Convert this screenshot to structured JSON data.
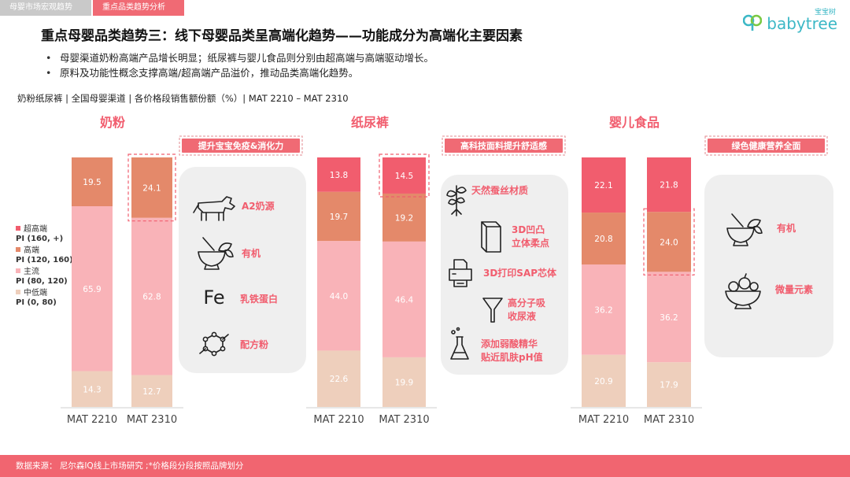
{
  "tabs": [
    "母婴市场宏观趋势",
    "重点品类趋势分析"
  ],
  "logo": {
    "cn": "宝宝树",
    "en": "babytree"
  },
  "title": "重点母婴品类趋势三：线下母婴品类呈高端化趋势——功能成分为高端化主要因素",
  "bullets": [
    "母婴渠道奶粉高端产品增长明显；纸尿裤与婴儿食品则分别由超高端与高端驱动增长。",
    "原料及功能性概念支撑高端/超高端产品溢价，推动品类高端化趋势。"
  ],
  "subtitle": "奶粉纸尿裤 | 全国母婴渠道 | 各价格段销售额份额（%）| MAT 2210 – MAT 2310",
  "legend": [
    {
      "name": "超高端",
      "pi": "PI (160, +)",
      "color": "#f15d6e"
    },
    {
      "name": "高端",
      "pi": "PI (120, 160)",
      "color": "#e4896a"
    },
    {
      "name": "主流",
      "pi": "PI (80, 120)",
      "color": "#f9b3b8"
    },
    {
      "name": "中低端",
      "pi": "PI (0, 80)",
      "color": "#eecfbc"
    }
  ],
  "colors": {
    "accent": "#f06a74",
    "super": "#f15d6e",
    "high": "#e4896a",
    "main": "#f9b3b8",
    "low": "#eecfbc",
    "text_on_bar": "#ffffff"
  },
  "chart_data": [
    {
      "type": "bar",
      "stacked": true,
      "title": "奶粉",
      "categories": [
        "MAT 2210",
        "MAT 2310"
      ],
      "series": [
        {
          "name": "中低端",
          "values": [
            14.3,
            12.7
          ]
        },
        {
          "name": "主流",
          "values": [
            65.9,
            62.8
          ]
        },
        {
          "name": "高端",
          "values": [
            19.5,
            24.1
          ]
        }
      ],
      "highlight": {
        "series": "高端",
        "category": "MAT 2310"
      },
      "tag": "提升宝宝免疫&消化力",
      "features": [
        {
          "icon": "cow-icon",
          "label": "A2奶源"
        },
        {
          "icon": "mortar-icon",
          "label": "有机"
        },
        {
          "icon": "fe-icon",
          "label": "乳铁蛋白",
          "symbol": "Fe"
        },
        {
          "icon": "molecule-icon",
          "label": "配方粉"
        }
      ]
    },
    {
      "type": "bar",
      "stacked": true,
      "title": "纸尿裤",
      "categories": [
        "MAT 2210",
        "MAT 2310"
      ],
      "series": [
        {
          "name": "中低端",
          "values": [
            22.6,
            19.9
          ]
        },
        {
          "name": "主流",
          "values": [
            44.0,
            46.4
          ]
        },
        {
          "name": "高端",
          "values": [
            19.7,
            19.2
          ]
        },
        {
          "name": "超高端",
          "values": [
            13.8,
            14.5
          ]
        }
      ],
      "highlight": {
        "series": "超高端",
        "category": "MAT 2310"
      },
      "tag": "高科技面料提升舒适感",
      "features": [
        {
          "icon": "plant-icon",
          "label": "天然蚕丝材质"
        },
        {
          "icon": "cube-icon",
          "label": "3D凹凸立体柔点"
        },
        {
          "icon": "printer-icon",
          "label": "3D打印SAP芯体"
        },
        {
          "icon": "funnel-icon",
          "label": "高分子吸收尿液"
        },
        {
          "icon": "flask-icon",
          "label": "添加弱酸精华贴近肌肤pH值"
        }
      ]
    },
    {
      "type": "bar",
      "stacked": true,
      "title": "婴儿食品",
      "categories": [
        "MAT 2210",
        "MAT 2310"
      ],
      "series": [
        {
          "name": "中低端",
          "values": [
            20.9,
            17.9
          ]
        },
        {
          "name": "主流",
          "values": [
            36.2,
            36.2
          ]
        },
        {
          "name": "高端",
          "values": [
            20.8,
            24.0
          ]
        },
        {
          "name": "超高端",
          "values": [
            22.1,
            21.8
          ]
        }
      ],
      "highlight": {
        "series": "高端",
        "category": "MAT 2310"
      },
      "tag": "绿色健康营养全面",
      "features": [
        {
          "icon": "mortar-icon",
          "label": "有机"
        },
        {
          "icon": "fruit-bowl-icon",
          "label": "微量元素"
        }
      ]
    }
  ],
  "footer": "数据来源： 尼尔森IQ线上市场研究 ;*价格段分段按照品牌划分"
}
